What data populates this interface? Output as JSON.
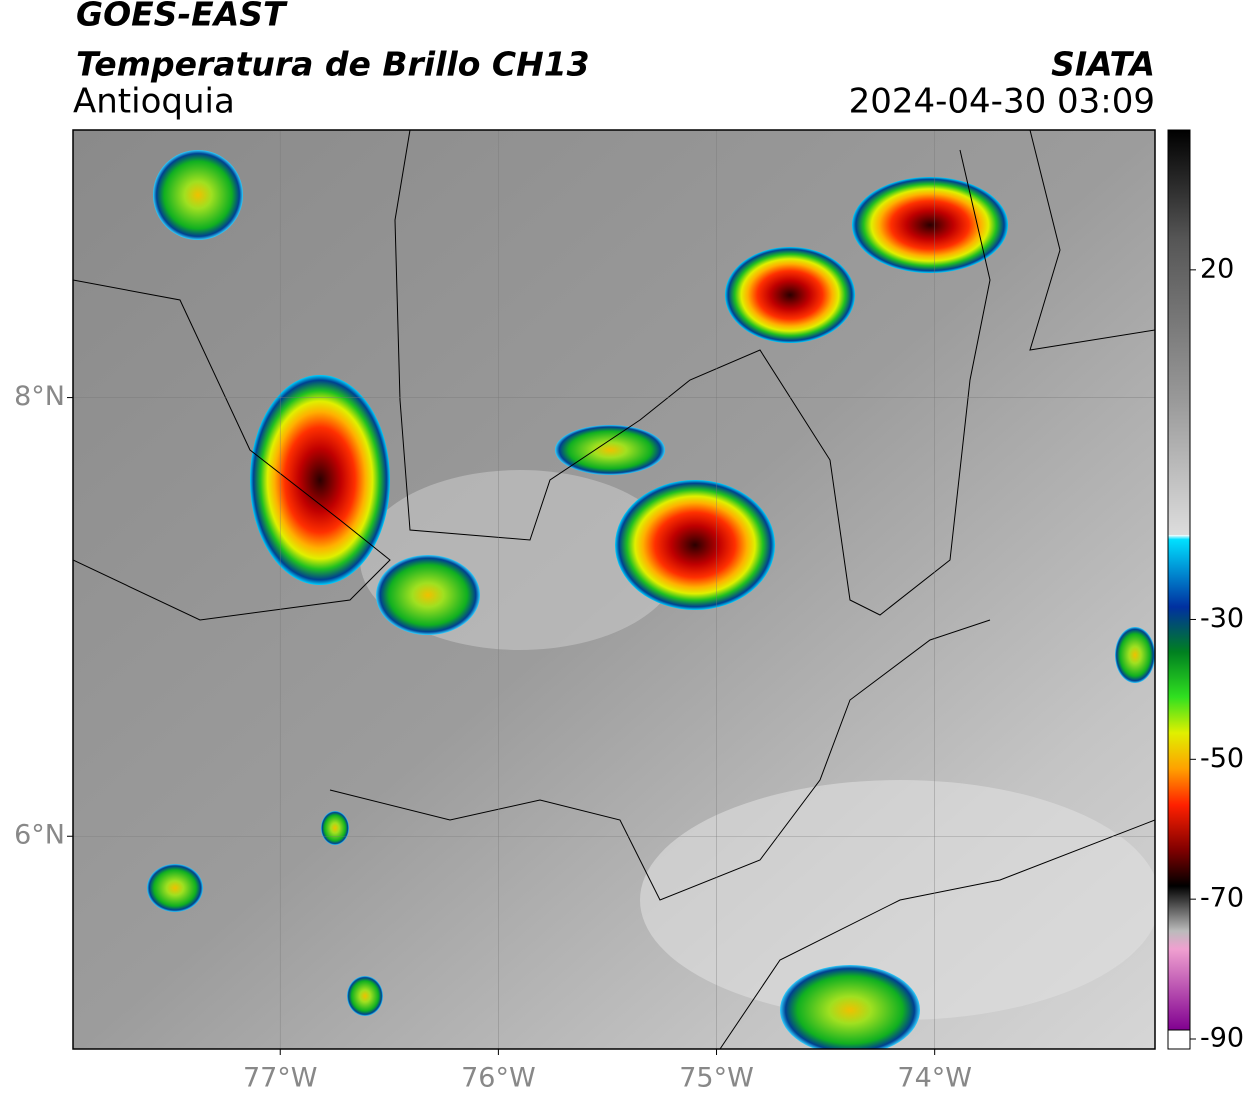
{
  "header": {
    "satellite": "GOES-EAST",
    "product": "Temperatura de Brillo CH13",
    "region": "Antioquia",
    "source": "SIATA",
    "datetime": "2024-04-30 03:09"
  },
  "map": {
    "xlim": [
      -77.95,
      -72.99
    ],
    "ylim": [
      5.03,
      9.22
    ],
    "xticks": [
      {
        "value": -77,
        "label": "77°W"
      },
      {
        "value": -76,
        "label": "76°W"
      },
      {
        "value": -75,
        "label": "75°W"
      },
      {
        "value": -74,
        "label": "74°W"
      }
    ],
    "yticks": [
      {
        "value": 8,
        "label": "8°N"
      },
      {
        "value": 6,
        "label": "6°N"
      }
    ],
    "grid": true
  },
  "colorbar": {
    "lim": [
      -90,
      40
    ],
    "ticks": [
      20,
      -30,
      -50,
      -70,
      -90
    ]
  }
}
